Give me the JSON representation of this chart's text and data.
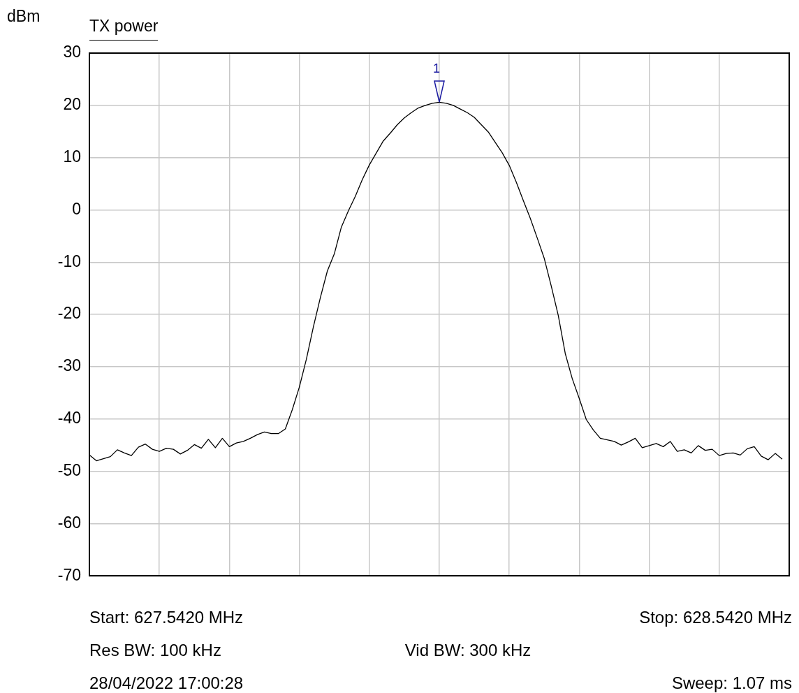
{
  "chart_data": {
    "type": "line",
    "title": "TX power",
    "ylabel": "dBm",
    "categories": [
      null,
      null,
      null,
      null,
      null,
      null,
      null,
      null,
      null,
      null,
      null,
      null,
      null,
      null,
      null,
      null,
      null,
      null,
      null,
      null,
      null,
      null,
      null,
      null,
      null,
      null,
      null,
      null,
      null,
      null,
      null,
      null,
      null,
      null,
      null,
      null,
      null,
      null,
      null,
      null,
      null,
      null,
      null,
      null,
      null,
      null,
      null,
      null,
      null,
      null,
      null,
      null,
      null,
      null,
      null,
      null,
      null,
      null,
      null,
      null,
      null,
      null,
      null,
      null,
      null,
      null,
      null,
      null,
      null,
      null,
      null,
      null,
      null,
      null,
      null,
      null,
      null,
      null,
      null,
      null,
      null,
      null,
      null,
      null,
      null,
      null,
      null,
      null,
      null,
      null,
      null,
      null,
      null,
      null,
      null,
      null,
      null,
      null,
      null,
      null,
      null
    ],
    "ylim": [
      -70,
      30
    ],
    "yticks": [
      -70,
      -60,
      -50,
      -40,
      -30,
      -20,
      -10,
      0,
      10,
      20,
      30
    ],
    "grid": true,
    "tick_labels": "y",
    "marker": "none",
    "line_style": "solid",
    "series": [
      {
        "color": "#000000",
        "values": [
          -46.9,
          -48.0,
          -47.6,
          -47.2,
          -45.9,
          -46.5,
          -47.0,
          -45.4,
          -44.8,
          -45.8,
          -46.2,
          -45.6,
          -45.8,
          -46.7,
          -46.0,
          -44.9,
          -45.6,
          -43.9,
          -45.5,
          -43.7,
          -45.3,
          -44.6,
          -44.3,
          -43.7,
          -43.0,
          -42.5,
          -42.8,
          -42.8,
          -41.9,
          -38.2,
          -33.9,
          -28.6,
          -22.4,
          -16.8,
          -11.7,
          -8.4,
          -3.3,
          -0.2,
          2.6,
          5.8,
          8.6,
          10.9,
          13.2,
          14.7,
          16.3,
          17.6,
          18.6,
          19.5,
          20.0,
          20.4,
          20.6,
          20.4,
          20.0,
          19.3,
          18.6,
          17.7,
          16.3,
          14.9,
          12.9,
          10.9,
          8.5,
          5.3,
          1.8,
          -1.6,
          -5.4,
          -9.3,
          -14.6,
          -20.2,
          -27.5,
          -32.3,
          -36.1,
          -40.1,
          -42.1,
          -43.7,
          -44.0,
          -44.3,
          -45.0,
          -44.4,
          -43.7,
          -45.5,
          -45.1,
          -44.7,
          -45.3,
          -44.3,
          -46.2,
          -45.9,
          -46.5,
          -45.1,
          -46.0,
          -45.8,
          -47.0,
          -46.6,
          -46.5,
          -46.9,
          -45.7,
          -45.3,
          -47.1,
          -47.8,
          -46.6,
          -47.7,
          null
        ]
      }
    ],
    "annotations": [
      {
        "text": "1",
        "y": 20.6
      },
      "Start: 627.5420 MHz",
      "Stop: 628.5420 MHz",
      "Res BW: 100 kHz",
      "Vid BW: 300 kHz",
      "Sweep: 1.07 ms",
      "28/04/2022 17:00:28"
    ]
  }
}
